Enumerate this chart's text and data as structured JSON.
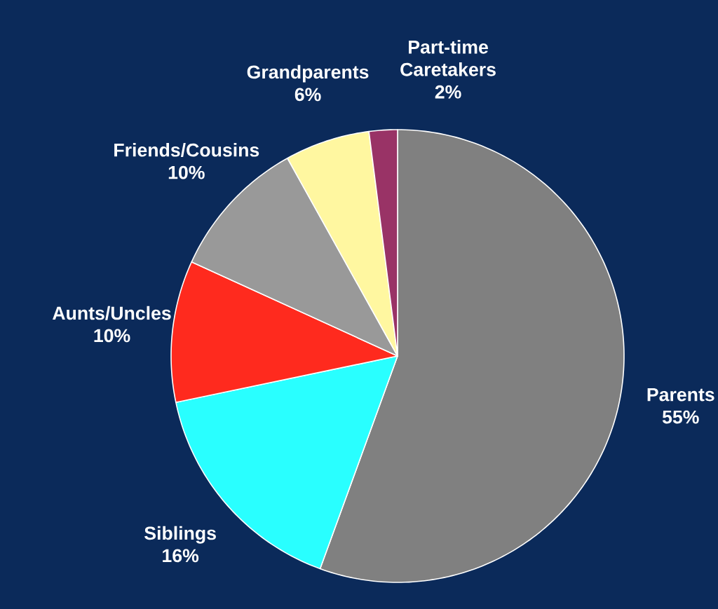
{
  "chart_data": {
    "type": "pie",
    "categories": [
      "Parents",
      "Siblings",
      "Aunts/Uncles",
      "Friends/Cousins",
      "Grandparents",
      "Part-time Caretakers"
    ],
    "values": [
      55,
      16,
      10,
      10,
      6,
      2
    ],
    "value_labels": [
      "55%",
      "16%",
      "10%",
      "10%",
      "6%",
      "2%"
    ],
    "colors": [
      "#808080",
      "#29ffff",
      "#ff2a1e",
      "#999999",
      "#fff7a0",
      "#993366"
    ]
  }
}
